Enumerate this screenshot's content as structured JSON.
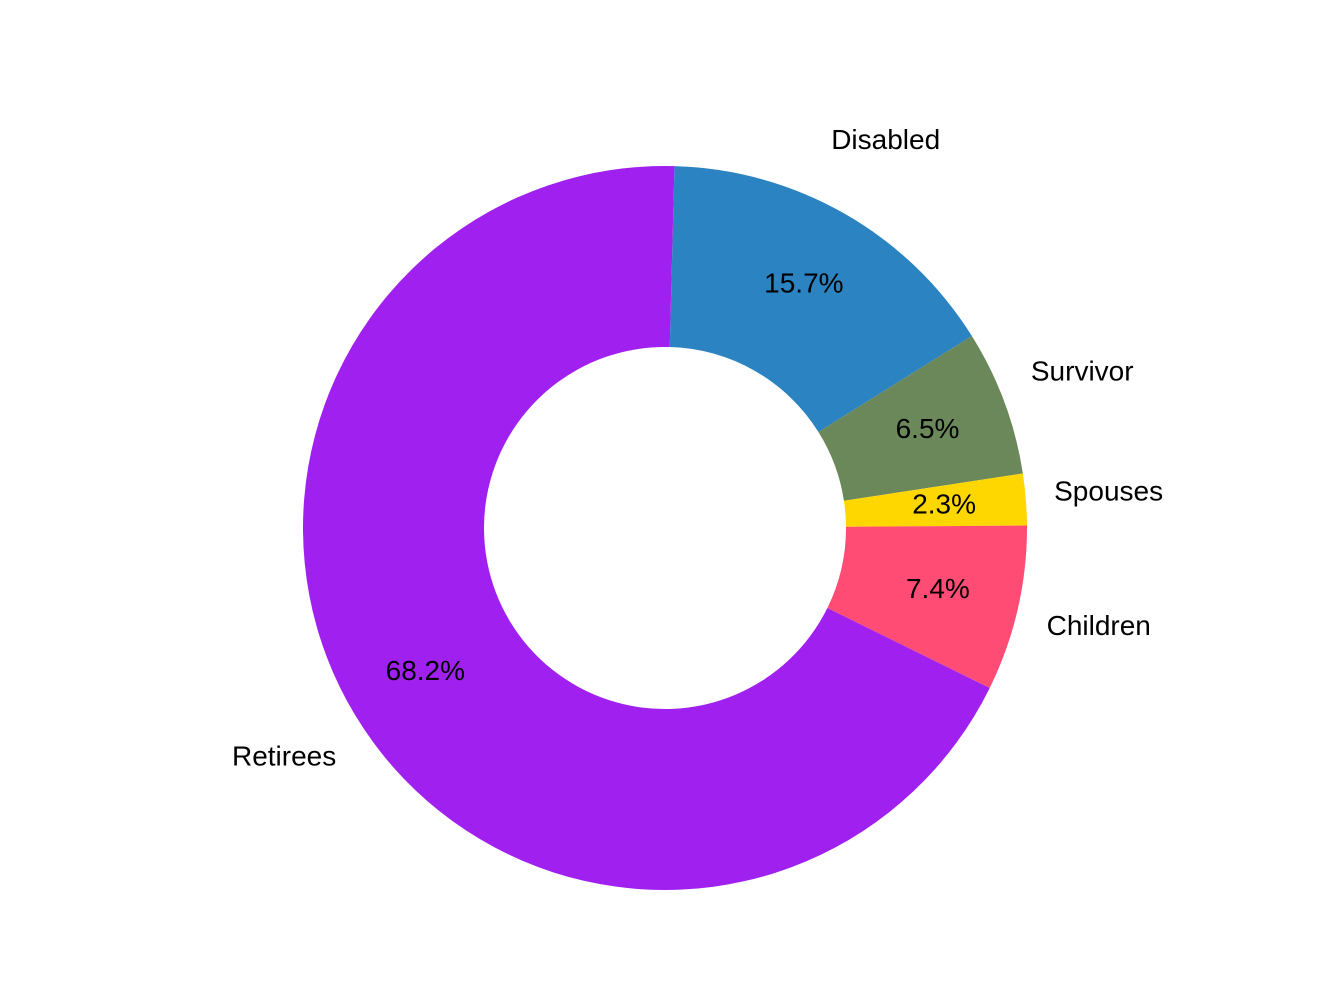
{
  "chart_data": {
    "type": "pie",
    "donut": true,
    "title": "",
    "legend": "none",
    "slices": [
      {
        "label": "Disabled",
        "value": 15.7,
        "pct_text": "15.7%",
        "color": "#2B83C2"
      },
      {
        "label": "Survivor",
        "value": 6.5,
        "pct_text": "6.5%",
        "color": "#6B885B"
      },
      {
        "label": "Spouses",
        "value": 2.3,
        "pct_text": "2.3%",
        "color": "#FFD700"
      },
      {
        "label": "Children",
        "value": 7.4,
        "pct_text": "7.4%",
        "color": "#FF4C74"
      },
      {
        "label": "Retirees",
        "value": 68.2,
        "pct_text": "68.2%",
        "color": "#A020F0"
      }
    ]
  }
}
